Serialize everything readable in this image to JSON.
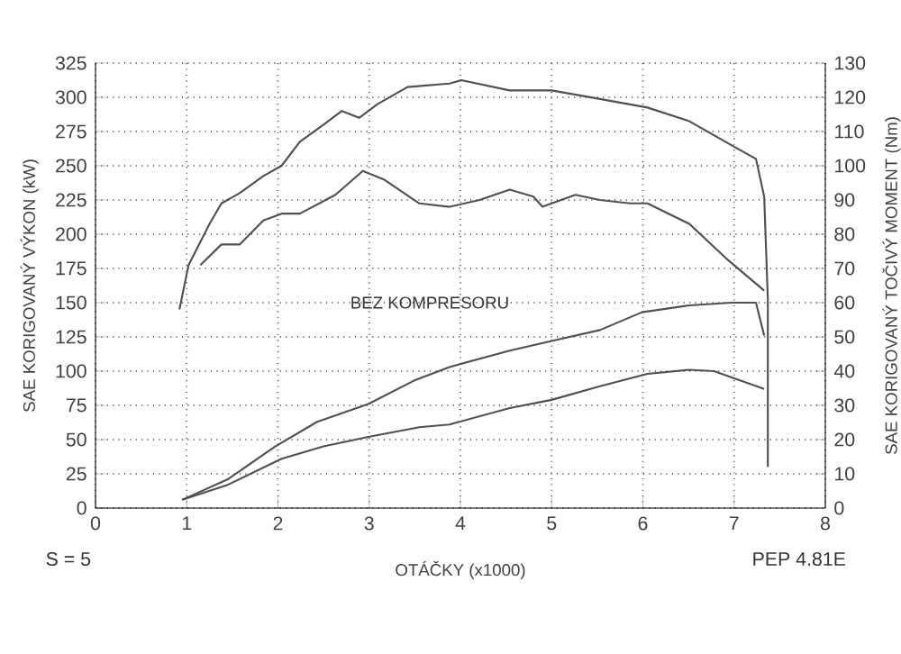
{
  "chart_data": {
    "type": "line",
    "xlabel": "OTÁČKY (x1000)",
    "ylabel": "SAE KORIGOVANÝ VÝKON (kW)",
    "y2label": "SAE KORIGOVANÝ TOČIVÝ MOMENT (Nm)",
    "annotations": [
      "BEZ KOMPRESORU",
      "S = 5",
      "PEP 4.81E"
    ],
    "xlim": [
      0,
      8
    ],
    "xticks": [
      0,
      1,
      2,
      3,
      4,
      5,
      6,
      7,
      8
    ],
    "ylim": [
      0,
      325
    ],
    "yticks": [
      0,
      25,
      50,
      75,
      100,
      125,
      150,
      175,
      200,
      225,
      250,
      275,
      300,
      325
    ],
    "y2lim": [
      0,
      130
    ],
    "y2ticks": [
      0,
      10,
      20,
      30,
      40,
      50,
      60,
      70,
      80,
      90,
      100,
      110,
      120,
      130
    ],
    "grid": true,
    "marker": "none",
    "line_style": "solid",
    "series": [
      {
        "color": "#505050",
        "axis": "y2",
        "x": [
          0.92,
          1.02,
          1.25,
          1.38,
          1.58,
          1.84,
          2.04,
          2.24,
          2.5,
          2.7,
          2.89,
          3.09,
          3.42,
          3.88,
          4.01,
          4.54,
          5.0,
          5.53,
          6.05,
          6.51,
          6.97,
          7.24,
          7.33,
          7.37,
          7.37
        ],
        "values": [
          58,
          71,
          83,
          89,
          92,
          97,
          100,
          107,
          112,
          116,
          114,
          118,
          123,
          124,
          125,
          122,
          122,
          119.5,
          117,
          113,
          106,
          102,
          91,
          61,
          12
        ]
      },
      {
        "color": "#505050",
        "axis": "y2",
        "x": [
          1.15,
          1.38,
          1.58,
          1.84,
          2.04,
          2.24,
          2.63,
          2.93,
          3.16,
          3.55,
          3.88,
          4.21,
          4.54,
          4.8,
          4.9,
          5.26,
          5.53,
          5.86,
          6.05,
          6.51,
          6.91,
          7.33
        ],
        "values": [
          71,
          77,
          77,
          84,
          86,
          86,
          91.5,
          98.5,
          96,
          89,
          88,
          90,
          93,
          91,
          88,
          91.5,
          90,
          89,
          89,
          83,
          73,
          63.5
        ]
      },
      {
        "color": "#505050",
        "x": [
          0.95,
          1.45,
          1.97,
          2.43,
          2.99,
          3.49,
          3.88,
          4.54,
          5.0,
          5.53,
          5.99,
          6.51,
          6.97,
          7.24,
          7.33
        ],
        "values": [
          6,
          21,
          45,
          63,
          76,
          93,
          103,
          115,
          122,
          130,
          143,
          148,
          150,
          150,
          126
        ]
      },
      {
        "color": "#505050",
        "x": [
          0.95,
          1.45,
          2.04,
          2.5,
          2.99,
          3.55,
          3.88,
          4.54,
          5.0,
          5.53,
          6.05,
          6.51,
          6.78,
          7.33
        ],
        "values": [
          6,
          17,
          36,
          45,
          52,
          59,
          61,
          73,
          79,
          89,
          98,
          101,
          100,
          87
        ]
      }
    ]
  }
}
